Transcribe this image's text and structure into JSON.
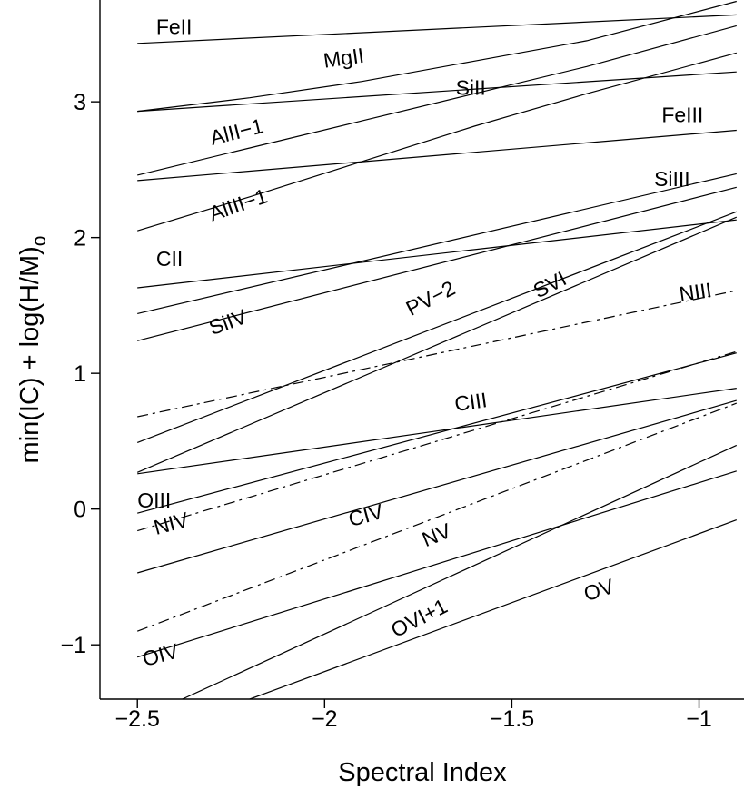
{
  "chart_data": {
    "type": "line",
    "xlabel": "Spectral Index",
    "ylabel": "min(IC) + log(H/M)",
    "ylabel_subscript": "o",
    "xlim": [
      -2.6,
      -0.88
    ],
    "ylim": [
      -1.4,
      3.75
    ],
    "xticks": [
      {
        "value": -2.5,
        "label": "−2.5"
      },
      {
        "value": -2.0,
        "label": "−2"
      },
      {
        "value": -1.5,
        "label": "−1.5"
      },
      {
        "value": -1.0,
        "label": "−1"
      }
    ],
    "yticks": [
      {
        "value": -1,
        "label": "−1"
      },
      {
        "value": 0,
        "label": "0"
      },
      {
        "value": 1,
        "label": "1"
      },
      {
        "value": 2,
        "label": "2"
      },
      {
        "value": 3,
        "label": "3"
      }
    ],
    "series": [
      {
        "name": "FeII",
        "style": "solid",
        "x": [
          -2.5,
          -0.9
        ],
        "y": [
          3.43,
          3.64
        ]
      },
      {
        "name": "MgII",
        "style": "solid",
        "x": [
          -2.5,
          -2.2,
          -1.9,
          -1.6,
          -1.3,
          -0.9
        ],
        "y": [
          2.93,
          3.03,
          3.15,
          3.3,
          3.45,
          3.74
        ]
      },
      {
        "name": "SiII",
        "style": "solid",
        "x": [
          -2.5,
          -0.9
        ],
        "y": [
          2.93,
          3.22
        ]
      },
      {
        "name": "AlII-1",
        "style": "solid",
        "x": [
          -2.5,
          -2.2,
          -1.9,
          -1.6,
          -1.3,
          -0.9
        ],
        "y": [
          2.46,
          2.66,
          2.86,
          3.06,
          3.26,
          3.56
        ]
      },
      {
        "name": "FeIII",
        "style": "solid",
        "x": [
          -2.5,
          -0.9
        ],
        "y": [
          2.42,
          2.79
        ]
      },
      {
        "name": "AlIII-1",
        "style": "solid",
        "x": [
          -2.5,
          -2.2,
          -1.9,
          -1.6,
          -1.3,
          -0.9
        ],
        "y": [
          2.05,
          2.3,
          2.56,
          2.82,
          3.06,
          3.36
        ]
      },
      {
        "name": "SiIII",
        "style": "solid",
        "x": [
          -2.5,
          -0.9
        ],
        "y": [
          1.44,
          2.47
        ]
      },
      {
        "name": "SiIV",
        "style": "solid",
        "x": [
          -2.5,
          -0.9
        ],
        "y": [
          1.24,
          2.37
        ]
      },
      {
        "name": "CII",
        "style": "solid",
        "x": [
          -2.5,
          -0.9
        ],
        "y": [
          1.63,
          2.13
        ]
      },
      {
        "name": "PV-2",
        "style": "solid",
        "x": [
          -2.5,
          -0.9
        ],
        "y": [
          0.49,
          2.19
        ]
      },
      {
        "name": "SVI",
        "style": "solid",
        "x": [
          -2.5,
          -0.9
        ],
        "y": [
          0.27,
          2.15
        ]
      },
      {
        "name": "NIII",
        "style": "dashdot",
        "x": [
          -2.5,
          -0.9
        ],
        "y": [
          0.68,
          1.61
        ]
      },
      {
        "name": "OIII",
        "style": "solid",
        "x": [
          -2.5,
          -0.9
        ],
        "y": [
          -0.03,
          1.15
        ]
      },
      {
        "name": "CIII",
        "style": "solid",
        "x": [
          -2.5,
          -0.9
        ],
        "y": [
          0.26,
          0.89
        ]
      },
      {
        "name": "NIV",
        "style": "dashdot",
        "x": [
          -2.5,
          -0.9
        ],
        "y": [
          -0.16,
          1.16
        ]
      },
      {
        "name": "CIV",
        "style": "solid",
        "x": [
          -2.5,
          -0.9
        ],
        "y": [
          -0.47,
          0.8
        ]
      },
      {
        "name": "NV",
        "style": "dashdot",
        "x": [
          -2.5,
          -0.9
        ],
        "y": [
          -0.9,
          0.78
        ]
      },
      {
        "name": "OIV",
        "style": "solid",
        "x": [
          -2.5,
          -0.9
        ],
        "y": [
          -1.09,
          0.28
        ]
      },
      {
        "name": "OVI+1",
        "style": "solid",
        "x": [
          -2.38,
          -0.9
        ],
        "y": [
          -1.4,
          0.47
        ]
      },
      {
        "name": "OV",
        "style": "solid",
        "x": [
          -2.2,
          -0.9
        ],
        "y": [
          -1.4,
          -0.08
        ]
      }
    ],
    "annotations": [
      {
        "text": "FeII",
        "x": -2.45,
        "y": 3.5,
        "angle": 0
      },
      {
        "text": "MgII",
        "x": -2.0,
        "y": 3.25,
        "angle": -8
      },
      {
        "text": "SiII",
        "x": -1.65,
        "y": 3.05,
        "angle": 0
      },
      {
        "text": "AlII−1",
        "x": -2.3,
        "y": 2.68,
        "angle": -14
      },
      {
        "text": "FeIII",
        "x": -1.1,
        "y": 2.85,
        "angle": 0
      },
      {
        "text": "AlIII−1",
        "x": -2.3,
        "y": 2.12,
        "angle": -19
      },
      {
        "text": "SiIII",
        "x": -1.12,
        "y": 2.38,
        "angle": 0
      },
      {
        "text": "CII",
        "x": -2.45,
        "y": 1.79,
        "angle": 0
      },
      {
        "text": "SiIV",
        "x": -2.3,
        "y": 1.28,
        "angle": -20
      },
      {
        "text": "PV−2",
        "x": -1.77,
        "y": 1.42,
        "angle": -27
      },
      {
        "text": "SVI",
        "x": -1.43,
        "y": 1.55,
        "angle": -27
      },
      {
        "text": "NIII",
        "x": -1.05,
        "y": 1.53,
        "angle": -8
      },
      {
        "text": "CIII",
        "x": -1.65,
        "y": 0.72,
        "angle": -8
      },
      {
        "text": "OIII",
        "x": -2.5,
        "y": 0.01,
        "angle": 0
      },
      {
        "text": "NIV",
        "x": -2.45,
        "y": -0.19,
        "angle": -15
      },
      {
        "text": "CIV",
        "x": -1.93,
        "y": -0.13,
        "angle": -15
      },
      {
        "text": "NV",
        "x": -1.73,
        "y": -0.28,
        "angle": -22
      },
      {
        "text": "OVI+1",
        "x": -1.81,
        "y": -0.95,
        "angle": -27
      },
      {
        "text": "OIV",
        "x": -2.48,
        "y": -1.16,
        "angle": -15
      },
      {
        "text": "OV",
        "x": -1.3,
        "y": -0.68,
        "angle": -18
      }
    ]
  }
}
